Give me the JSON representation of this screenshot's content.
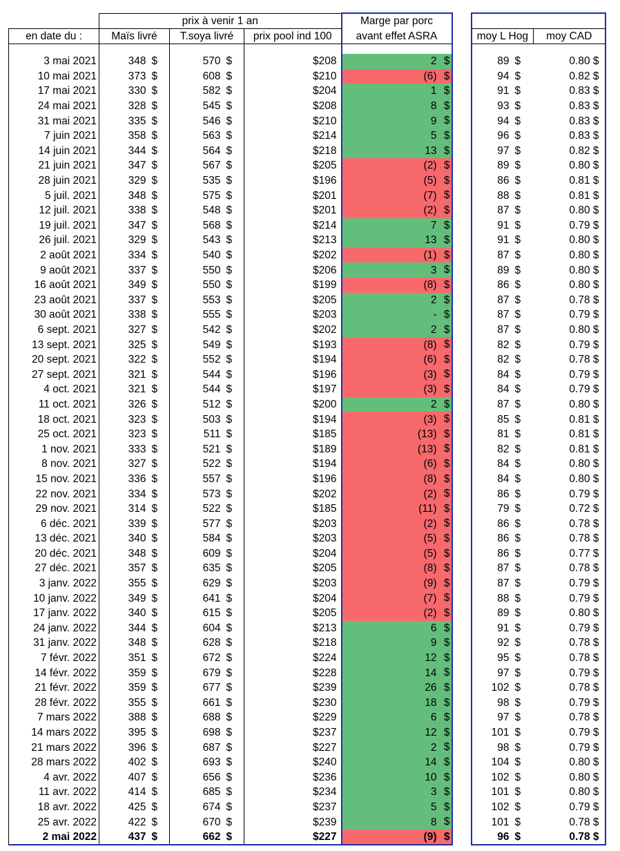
{
  "headers": {
    "group_prix": "prix à venir 1 an",
    "marge_line1": "Marge par porc",
    "marge_line2": "avant effet ASRA",
    "date": "en date du :",
    "mais": "Maïs livré",
    "soya": "T.soya livré",
    "pool": "prix pool ind 100",
    "hog": "moy L Hog",
    "cad": "moy CAD"
  },
  "currency_symbol": "$",
  "colors": {
    "positive": "#63be7b",
    "negative": "#f8696b",
    "frame": "#1f2fa8"
  },
  "rows": [
    {
      "date": "3 mai 2021",
      "mais": "348",
      "soya": "570",
      "pool": "$208",
      "marge": "2",
      "sign": "pos",
      "hog": "89",
      "cad": "0.80 $"
    },
    {
      "date": "10 mai 2021",
      "mais": "373",
      "soya": "608",
      "pool": "$210",
      "marge": "(6)",
      "sign": "neg",
      "hog": "94",
      "cad": "0.82 $"
    },
    {
      "date": "17 mai 2021",
      "mais": "330",
      "soya": "582",
      "pool": "$204",
      "marge": "1",
      "sign": "pos",
      "hog": "91",
      "cad": "0.83 $"
    },
    {
      "date": "24 mai 2021",
      "mais": "328",
      "soya": "545",
      "pool": "$208",
      "marge": "8",
      "sign": "pos",
      "hog": "93",
      "cad": "0.83 $"
    },
    {
      "date": "31 mai 2021",
      "mais": "335",
      "soya": "546",
      "pool": "$210",
      "marge": "9",
      "sign": "pos",
      "hog": "94",
      "cad": "0.83 $"
    },
    {
      "date": "7 juin 2021",
      "mais": "358",
      "soya": "563",
      "pool": "$214",
      "marge": "5",
      "sign": "pos",
      "hog": "96",
      "cad": "0.83 $"
    },
    {
      "date": "14 juin 2021",
      "mais": "344",
      "soya": "564",
      "pool": "$218",
      "marge": "13",
      "sign": "pos",
      "hog": "97",
      "cad": "0.82 $"
    },
    {
      "date": "21 juin 2021",
      "mais": "347",
      "soya": "567",
      "pool": "$205",
      "marge": "(2)",
      "sign": "neg",
      "hog": "89",
      "cad": "0.80 $"
    },
    {
      "date": "28 juin 2021",
      "mais": "329",
      "soya": "535",
      "pool": "$196",
      "marge": "(5)",
      "sign": "neg",
      "hog": "86",
      "cad": "0.81 $"
    },
    {
      "date": "5 juil. 2021",
      "mais": "348",
      "soya": "575",
      "pool": "$201",
      "marge": "(7)",
      "sign": "neg",
      "hog": "88",
      "cad": "0.81 $"
    },
    {
      "date": "12 juil. 2021",
      "mais": "338",
      "soya": "548",
      "pool": "$201",
      "marge": "(2)",
      "sign": "neg",
      "hog": "87",
      "cad": "0.80 $"
    },
    {
      "date": "19 juil. 2021",
      "mais": "347",
      "soya": "568",
      "pool": "$214",
      "marge": "7",
      "sign": "pos",
      "hog": "91",
      "cad": "0.79 $"
    },
    {
      "date": "26 juil. 2021",
      "mais": "329",
      "soya": "543",
      "pool": "$213",
      "marge": "13",
      "sign": "pos",
      "hog": "91",
      "cad": "0.80 $"
    },
    {
      "date": "2 août 2021",
      "mais": "334",
      "soya": "540",
      "pool": "$202",
      "marge": "(1)",
      "sign": "neg",
      "hog": "87",
      "cad": "0.80 $"
    },
    {
      "date": "9 août 2021",
      "mais": "337",
      "soya": "550",
      "pool": "$206",
      "marge": "3",
      "sign": "pos",
      "hog": "89",
      "cad": "0.80 $"
    },
    {
      "date": "16 août 2021",
      "mais": "349",
      "soya": "550",
      "pool": "$199",
      "marge": "(8)",
      "sign": "neg",
      "hog": "86",
      "cad": "0.80 $"
    },
    {
      "date": "23 août 2021",
      "mais": "337",
      "soya": "553",
      "pool": "$205",
      "marge": "2",
      "sign": "pos",
      "hog": "87",
      "cad": "0.78 $"
    },
    {
      "date": "30 août 2021",
      "mais": "338",
      "soya": "555",
      "pool": "$203",
      "marge": "-",
      "sign": "pos",
      "hog": "87",
      "cad": "0.79 $"
    },
    {
      "date": "6 sept. 2021",
      "mais": "327",
      "soya": "542",
      "pool": "$202",
      "marge": "2",
      "sign": "pos",
      "hog": "87",
      "cad": "0.80 $"
    },
    {
      "date": "13 sept. 2021",
      "mais": "325",
      "soya": "549",
      "pool": "$193",
      "marge": "(8)",
      "sign": "neg",
      "hog": "82",
      "cad": "0.79 $"
    },
    {
      "date": "20 sept. 2021",
      "mais": "322",
      "soya": "552",
      "pool": "$194",
      "marge": "(6)",
      "sign": "neg",
      "hog": "82",
      "cad": "0.78 $"
    },
    {
      "date": "27 sept. 2021",
      "mais": "321",
      "soya": "544",
      "pool": "$196",
      "marge": "(3)",
      "sign": "neg",
      "hog": "84",
      "cad": "0.79 $"
    },
    {
      "date": "4 oct. 2021",
      "mais": "321",
      "soya": "544",
      "pool": "$197",
      "marge": "(3)",
      "sign": "neg",
      "hog": "84",
      "cad": "0.79 $"
    },
    {
      "date": "11 oct. 2021",
      "mais": "326",
      "soya": "512",
      "pool": "$200",
      "marge": "2",
      "sign": "pos",
      "hog": "87",
      "cad": "0.80 $"
    },
    {
      "date": "18 oct. 2021",
      "mais": "323",
      "soya": "503",
      "pool": "$194",
      "marge": "(3)",
      "sign": "neg",
      "hog": "85",
      "cad": "0.81 $"
    },
    {
      "date": "25 oct. 2021",
      "mais": "323",
      "soya": "511",
      "pool": "$185",
      "marge": "(13)",
      "sign": "neg",
      "hog": "81",
      "cad": "0.81 $"
    },
    {
      "date": "1 nov. 2021",
      "mais": "333",
      "soya": "521",
      "pool": "$189",
      "marge": "(13)",
      "sign": "neg",
      "hog": "82",
      "cad": "0.81 $"
    },
    {
      "date": "8 nov. 2021",
      "mais": "327",
      "soya": "522",
      "pool": "$194",
      "marge": "(6)",
      "sign": "neg",
      "hog": "84",
      "cad": "0.80 $"
    },
    {
      "date": "15 nov. 2021",
      "mais": "336",
      "soya": "557",
      "pool": "$196",
      "marge": "(8)",
      "sign": "neg",
      "hog": "84",
      "cad": "0.80 $"
    },
    {
      "date": "22 nov. 2021",
      "mais": "334",
      "soya": "573",
      "pool": "$202",
      "marge": "(2)",
      "sign": "neg",
      "hog": "86",
      "cad": "0.79 $"
    },
    {
      "date": "29 nov. 2021",
      "mais": "314",
      "soya": "522",
      "pool": "$185",
      "marge": "(11)",
      "sign": "neg",
      "hog": "79",
      "cad": "0.72 $"
    },
    {
      "date": "6 déc. 2021",
      "mais": "339",
      "soya": "577",
      "pool": "$203",
      "marge": "(2)",
      "sign": "neg",
      "hog": "86",
      "cad": "0.78 $"
    },
    {
      "date": "13 déc. 2021",
      "mais": "340",
      "soya": "584",
      "pool": "$203",
      "marge": "(5)",
      "sign": "neg",
      "hog": "86",
      "cad": "0.78 $"
    },
    {
      "date": "20 déc. 2021",
      "mais": "348",
      "soya": "609",
      "pool": "$204",
      "marge": "(5)",
      "sign": "neg",
      "hog": "86",
      "cad": "0.77 $"
    },
    {
      "date": "27 déc. 2021",
      "mais": "357",
      "soya": "635",
      "pool": "$205",
      "marge": "(8)",
      "sign": "neg",
      "hog": "87",
      "cad": "0.78 $"
    },
    {
      "date": "3 janv. 2022",
      "mais": "355",
      "soya": "629",
      "pool": "$203",
      "marge": "(9)",
      "sign": "neg",
      "hog": "87",
      "cad": "0.79 $"
    },
    {
      "date": "10 janv. 2022",
      "mais": "349",
      "soya": "641",
      "pool": "$204",
      "marge": "(7)",
      "sign": "neg",
      "hog": "88",
      "cad": "0.79 $"
    },
    {
      "date": "17 janv. 2022",
      "mais": "340",
      "soya": "615",
      "pool": "$205",
      "marge": "(2)",
      "sign": "neg",
      "hog": "89",
      "cad": "0.80 $"
    },
    {
      "date": "24 janv. 2022",
      "mais": "344",
      "soya": "604",
      "pool": "$213",
      "marge": "6",
      "sign": "pos",
      "hog": "91",
      "cad": "0.79 $"
    },
    {
      "date": "31 janv. 2022",
      "mais": "348",
      "soya": "628",
      "pool": "$218",
      "marge": "9",
      "sign": "pos",
      "hog": "92",
      "cad": "0.78 $"
    },
    {
      "date": "7 févr. 2022",
      "mais": "351",
      "soya": "672",
      "pool": "$224",
      "marge": "12",
      "sign": "pos",
      "hog": "95",
      "cad": "0.78 $"
    },
    {
      "date": "14 févr. 2022",
      "mais": "359",
      "soya": "679",
      "pool": "$228",
      "marge": "14",
      "sign": "pos",
      "hog": "97",
      "cad": "0.79 $"
    },
    {
      "date": "21 févr. 2022",
      "mais": "359",
      "soya": "677",
      "pool": "$239",
      "marge": "26",
      "sign": "pos",
      "hog": "102",
      "cad": "0.78 $"
    },
    {
      "date": "28 févr. 2022",
      "mais": "355",
      "soya": "661",
      "pool": "$230",
      "marge": "18",
      "sign": "pos",
      "hog": "98",
      "cad": "0.79 $"
    },
    {
      "date": "7 mars 2022",
      "mais": "388",
      "soya": "688",
      "pool": "$229",
      "marge": "6",
      "sign": "pos",
      "hog": "97",
      "cad": "0.78 $"
    },
    {
      "date": "14 mars 2022",
      "mais": "395",
      "soya": "698",
      "pool": "$237",
      "marge": "12",
      "sign": "pos",
      "hog": "101",
      "cad": "0.79 $"
    },
    {
      "date": "21 mars 2022",
      "mais": "396",
      "soya": "687",
      "pool": "$227",
      "marge": "2",
      "sign": "pos",
      "hog": "98",
      "cad": "0.79 $"
    },
    {
      "date": "28 mars 2022",
      "mais": "402",
      "soya": "693",
      "pool": "$240",
      "marge": "14",
      "sign": "pos",
      "hog": "104",
      "cad": "0.80 $"
    },
    {
      "date": "4 avr. 2022",
      "mais": "407",
      "soya": "656",
      "pool": "$236",
      "marge": "10",
      "sign": "pos",
      "hog": "102",
      "cad": "0.80 $"
    },
    {
      "date": "11 avr. 2022",
      "mais": "414",
      "soya": "685",
      "pool": "$234",
      "marge": "3",
      "sign": "pos",
      "hog": "101",
      "cad": "0.80 $"
    },
    {
      "date": "18 avr. 2022",
      "mais": "425",
      "soya": "674",
      "pool": "$237",
      "marge": "5",
      "sign": "pos",
      "hog": "102",
      "cad": "0.79 $"
    },
    {
      "date": "25 avr. 2022",
      "mais": "422",
      "soya": "670",
      "pool": "$239",
      "marge": "8",
      "sign": "pos",
      "hog": "101",
      "cad": "0.78 $"
    },
    {
      "date": "2 mai 2022",
      "mais": "437",
      "soya": "662",
      "pool": "$227",
      "marge": "(9)",
      "sign": "neg",
      "hog": "96",
      "cad": "0.78 $",
      "bold": true
    }
  ]
}
